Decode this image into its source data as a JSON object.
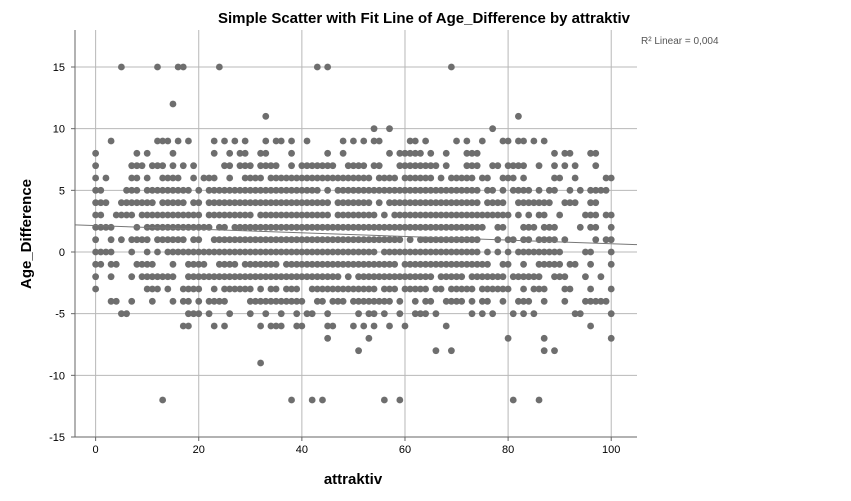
{
  "chart_data": {
    "type": "scatter",
    "title": "Simple Scatter with Fit Line of Age_Difference by attraktiv",
    "xlabel": "attraktiv",
    "ylabel": "Age_Difference",
    "xlim": [
      -4,
      105
    ],
    "ylim": [
      -15,
      18
    ],
    "xticks": [
      0,
      20,
      40,
      60,
      80,
      100
    ],
    "yticks": [
      -15,
      -10,
      -5,
      0,
      5,
      10,
      15
    ],
    "grid": true,
    "annotation": "R² Linear = 0,004",
    "fit_line": {
      "x": [
        -4,
        105
      ],
      "y": [
        2.2,
        0.6
      ]
    },
    "point_color": "#6e6e6e",
    "points": {
      "x_values": "integers 0-100 (all values present)",
      "y_values": "integers, mostly between -12 and 15"
    }
  }
}
